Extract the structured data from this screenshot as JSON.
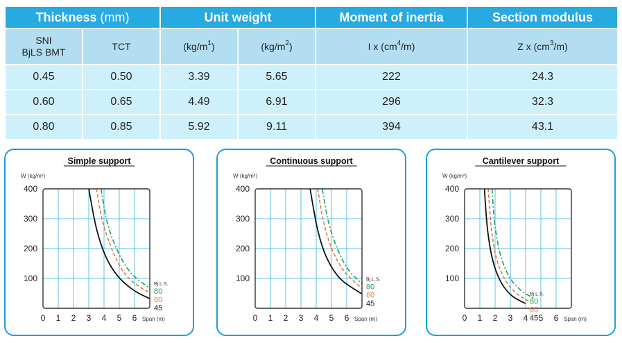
{
  "table": {
    "header_groups": [
      {
        "label": "Thickness",
        "unit": " (mm)",
        "span": 2
      },
      {
        "label": "Unit weight",
        "unit": "",
        "span": 2
      },
      {
        "label": "Moment of inertia",
        "unit": "",
        "span": 1
      },
      {
        "label": "Section modulus",
        "unit": "",
        "span": 1
      }
    ],
    "sub_headers": {
      "sni_line1": "SNI",
      "sni_line2": "BjLS BMT",
      "tct": "TCT",
      "kgm1_base": "(kg/m",
      "kgm1_sup": "1",
      "kgm1_end": ")",
      "kgm2_base": "(kg/m",
      "kgm2_sup": "2",
      "kgm2_end": ")",
      "ix_base": "I x (cm",
      "ix_sup": "4",
      "ix_end": "/m)",
      "zx_base": "Z x (cm",
      "zx_sup": "3",
      "zx_end": "/m)"
    },
    "rows": [
      [
        "0.45",
        "0.50",
        "3.39",
        "5.65",
        "222",
        "24.3"
      ],
      [
        "0.60",
        "0.65",
        "4.49",
        "6.91",
        "296",
        "32.3"
      ],
      [
        "0.80",
        "0.85",
        "5.92",
        "9.11",
        "394",
        "43.1"
      ]
    ]
  },
  "chart_data": [
    {
      "type": "line",
      "title": "Simple support",
      "ylabel": "W (kg/m²)",
      "xlabel": "Span (m)",
      "xlim": [
        0,
        7
      ],
      "ylim": [
        0,
        400
      ],
      "x_ticks": [
        "0",
        "1",
        "2",
        "3",
        "4",
        "5",
        "6"
      ],
      "y_ticks": [
        "100",
        "200",
        "300",
        "400"
      ],
      "legend_title": "Bj.L.S.",
      "series": [
        {
          "name": "80",
          "color": "#1aa05a",
          "style": "dashdot",
          "x": [
            3.8,
            4.2,
            4.8,
            5.5,
            6.2,
            7.0
          ],
          "values": [
            400,
            290,
            202,
            136,
            97,
            68
          ]
        },
        {
          "name": "60",
          "color": "#e8783a",
          "style": "dashed",
          "x": [
            3.5,
            3.9,
            4.5,
            5.2,
            6.0,
            7.0
          ],
          "values": [
            400,
            292,
            200,
            128,
            84,
            52
          ]
        },
        {
          "name": "45",
          "color": "#111111",
          "style": "solid",
          "x": [
            3.0,
            3.5,
            4.1,
            4.9,
            5.9,
            7.0
          ],
          "values": [
            400,
            268,
            175,
            108,
            62,
            32
          ]
        }
      ]
    },
    {
      "type": "line",
      "title": "Continuous support",
      "ylabel": "W (kg/m²)",
      "xlabel": "Span (m)",
      "xlim": [
        0,
        7
      ],
      "ylim": [
        0,
        400
      ],
      "x_ticks": [
        "0",
        "1",
        "2",
        "3",
        "4",
        "5",
        "6"
      ],
      "y_ticks": [
        "100",
        "200",
        "300",
        "400"
      ],
      "legend_title": "Bj.L.S.",
      "series": [
        {
          "name": "80",
          "color": "#1aa05a",
          "style": "dashdot",
          "x": [
            4.4,
            4.8,
            5.4,
            6.1,
            7.0
          ],
          "values": [
            400,
            290,
            198,
            130,
            82
          ]
        },
        {
          "name": "60",
          "color": "#e8783a",
          "style": "dashed",
          "x": [
            4.1,
            4.5,
            5.1,
            5.9,
            7.0
          ],
          "values": [
            400,
            285,
            190,
            120,
            66
          ]
        },
        {
          "name": "45",
          "color": "#111111",
          "style": "solid",
          "x": [
            3.6,
            4.1,
            4.7,
            5.6,
            7.0
          ],
          "values": [
            400,
            262,
            168,
            98,
            48
          ]
        }
      ]
    },
    {
      "type": "line",
      "title": "Cantilever support",
      "ylabel": "W (kg/m²)",
      "xlabel": "Span (m)",
      "xlim": [
        0,
        7
      ],
      "ylim": [
        0,
        400
      ],
      "x_ticks": [
        "0",
        "1",
        "2",
        "3",
        "4",
        "5",
        "6"
      ],
      "y_ticks": [
        "100",
        "200",
        "300",
        "400"
      ],
      "legend_title": "Bj.L.S.",
      "series": [
        {
          "name": "80",
          "color": "#1aa05a",
          "style": "dashdot",
          "x": [
            1.8,
            2.0,
            2.4,
            3.0,
            3.7,
            4.5
          ],
          "values": [
            400,
            275,
            170,
            100,
            60,
            34
          ]
        },
        {
          "name": "60",
          "color": "#e8783a",
          "style": "dashed",
          "x": [
            1.55,
            1.75,
            2.1,
            2.7,
            3.4,
            4.2
          ],
          "values": [
            400,
            270,
            165,
            92,
            50,
            24
          ]
        },
        {
          "name": "45",
          "color": "#111111",
          "style": "solid",
          "x": [
            1.3,
            1.5,
            1.85,
            2.4,
            3.1,
            4.0
          ],
          "values": [
            400,
            265,
            160,
            86,
            42,
            16
          ]
        }
      ]
    }
  ]
}
